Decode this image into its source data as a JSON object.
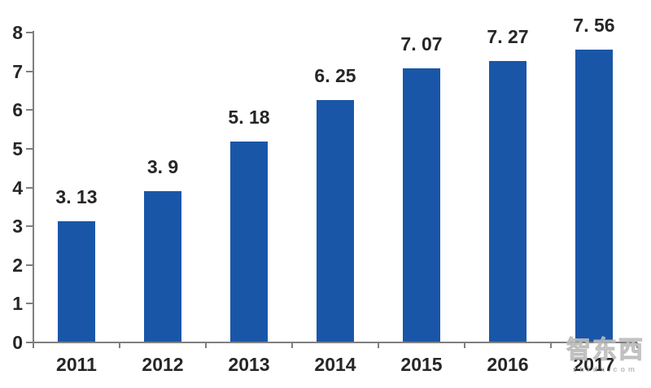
{
  "chart_data": {
    "type": "bar",
    "categories": [
      "2011",
      "2012",
      "2013",
      "2014",
      "2015",
      "2016",
      "2017"
    ],
    "values": [
      3.13,
      3.9,
      5.18,
      6.25,
      7.07,
      7.27,
      7.56
    ],
    "value_labels": [
      "3. 13",
      "3. 9",
      "5. 18",
      "6. 25",
      "7. 07",
      "7. 27",
      "7. 56"
    ],
    "title": "",
    "xlabel": "",
    "ylabel": "",
    "ylim": [
      0,
      8
    ],
    "yticks": [
      0,
      1,
      2,
      3,
      4,
      5,
      6,
      7,
      8
    ],
    "grid": false,
    "legend": false,
    "bar_color": "#1a56a8",
    "axis_color": "#7f7f7f",
    "text_color": "#262626"
  },
  "watermark": {
    "text": "智东西",
    "subtext": "zhidx.com"
  }
}
